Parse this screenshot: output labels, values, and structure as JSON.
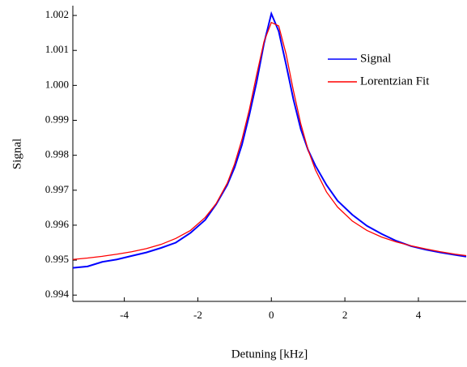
{
  "chart_data": {
    "type": "line",
    "x_label": "Detuning [kHz]",
    "y_label": "Signal",
    "x": [
      -5.4,
      -5,
      -4.6,
      -4.2,
      -3.8,
      -3.4,
      -3,
      -2.6,
      -2.2,
      -1.8,
      -1.5,
      -1.2,
      -1,
      -0.8,
      -0.6,
      -0.4,
      -0.2,
      0,
      0.2,
      0.4,
      0.6,
      0.8,
      1,
      1.2,
      1.5,
      1.8,
      2.2,
      2.6,
      3,
      3.4,
      3.8,
      4.2,
      4.6,
      5,
      5.3
    ],
    "series": [
      {
        "name": "Signal",
        "color": "#0000ff",
        "values": [
          0.99478,
          0.99482,
          0.99495,
          0.99502,
          0.99512,
          0.99522,
          0.99535,
          0.9955,
          0.99578,
          0.99615,
          0.9966,
          0.99715,
          0.99765,
          0.9983,
          0.99915,
          1.0001,
          1.0012,
          1.00205,
          1.00155,
          1.0006,
          0.9996,
          0.99875,
          0.99815,
          0.9977,
          0.99715,
          0.9967,
          0.9963,
          0.99598,
          0.99575,
          0.99555,
          0.9954,
          0.9953,
          0.99522,
          0.99515,
          0.9951
        ]
      },
      {
        "name": "Lorentzian Fit",
        "color": "#ff0000",
        "values": [
          0.99502,
          0.99506,
          0.99511,
          0.99517,
          0.99524,
          0.99533,
          0.99545,
          0.99562,
          0.99585,
          0.99622,
          0.99662,
          0.9972,
          0.99775,
          0.99845,
          0.9993,
          1.0003,
          1.00125,
          1.0018,
          1.0017,
          1.0009,
          0.99985,
          0.9989,
          0.99815,
          0.99758,
          0.99695,
          0.99652,
          0.99612,
          0.99585,
          0.99566,
          0.99552,
          0.99541,
          0.99532,
          0.99524,
          0.99517,
          0.99513
        ]
      }
    ],
    "xlim": [
      -5.4,
      5.3
    ],
    "xticks": [
      -4,
      -2,
      0,
      2,
      4
    ],
    "ylim": [
      0.99382,
      1.00228
    ],
    "yticks": [
      0.994,
      0.995,
      0.996,
      0.997,
      0.998,
      0.999,
      {
        "value": 1,
        "label": "1.000"
      },
      1.001,
      1.002
    ],
    "grid": false,
    "legend": "top-right"
  }
}
